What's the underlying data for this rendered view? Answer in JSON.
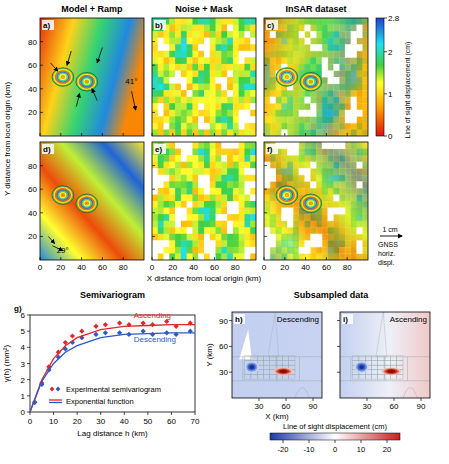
{
  "chart_data": [
    {
      "type": "map",
      "titles": [
        "Model + Ramp",
        "Noise + Mask",
        "InSAR dataset"
      ],
      "panel_labels": [
        "a)",
        "b)",
        "c)",
        "d)",
        "e)",
        "f)"
      ],
      "xlabel": "X distance from local origin (km)",
      "ylabel": "Y distance from local origin (km)",
      "xlim": [
        0,
        100
      ],
      "ylim": [
        0,
        100
      ],
      "xticks": [
        0,
        20,
        40,
        60,
        80
      ],
      "yticks": [
        20,
        40,
        60,
        80
      ],
      "colorbar": {
        "label": "Line of sight displacement (cm)",
        "lim": [
          0,
          2.8
        ],
        "ticks": [
          0,
          1,
          2,
          2.8
        ]
      },
      "annotations": [
        "41°",
        "29°"
      ],
      "scale": {
        "label": "1 cm",
        "title": "GNSS horiz. displ."
      }
    },
    {
      "type": "scatter",
      "label": "g)",
      "title": "Semivariogram",
      "xlabel": "Lag distance h (km)",
      "ylabel": "γ(h) (mm²)",
      "xlim": [
        0,
        70
      ],
      "ylim": [
        0,
        6
      ],
      "xticks": [
        0,
        10,
        20,
        30,
        40,
        50,
        60,
        70
      ],
      "yticks": [
        0,
        1,
        2,
        3,
        4,
        5,
        6
      ],
      "legend": "lower right",
      "legend_labels": [
        "Experimental semivariogram",
        "Exponential function"
      ],
      "series": [
        {
          "name": "Ascending",
          "type": "scatter",
          "marker": "diamond",
          "color": "#e3262b",
          "x": [
            2,
            5,
            8,
            12,
            15,
            18,
            22,
            28,
            32,
            38,
            42,
            48,
            52,
            58,
            62,
            68
          ],
          "values": [
            0.6,
            1.8,
            2.8,
            3.7,
            4.3,
            4.7,
            5.0,
            5.3,
            5.4,
            5.5,
            5.4,
            5.5,
            5.4,
            5.6,
            5.3,
            5.5
          ]
        },
        {
          "name": "Descending",
          "type": "scatter",
          "marker": "diamond",
          "color": "#2b5bc8",
          "x": [
            2,
            5,
            8,
            12,
            15,
            18,
            22,
            28,
            32,
            38,
            42,
            48,
            52,
            58,
            62,
            68
          ],
          "values": [
            0.6,
            1.7,
            2.6,
            3.4,
            3.9,
            4.3,
            4.6,
            4.8,
            4.9,
            4.9,
            4.8,
            5.0,
            4.8,
            4.9,
            4.8,
            5.0
          ]
        },
        {
          "name": "Ascending",
          "type": "line",
          "line_style": "solid",
          "color": "#e3262b",
          "x": [
            0,
            5,
            10,
            15,
            20,
            30,
            40,
            50,
            60,
            70
          ],
          "values": [
            0,
            2.0,
            3.3,
            4.1,
            4.6,
            5.1,
            5.3,
            5.35,
            5.4,
            5.4
          ]
        },
        {
          "name": "Descending",
          "type": "line",
          "line_style": "solid",
          "color": "#2b5bc8",
          "x": [
            0,
            5,
            10,
            15,
            20,
            30,
            40,
            50,
            60,
            70
          ],
          "values": [
            0,
            1.9,
            3.0,
            3.7,
            4.1,
            4.6,
            4.8,
            4.85,
            4.9,
            4.9
          ]
        }
      ]
    },
    {
      "type": "map",
      "title": "Subsampled data",
      "panel_labels": [
        "h)",
        "i)"
      ],
      "panel_titles": [
        "Descending",
        "Ascending"
      ],
      "xlabel": "X (km)",
      "ylabel": "Y (km)",
      "xlim": [
        0,
        100
      ],
      "ylim": [
        0,
        100
      ],
      "xticks": [
        30,
        60,
        90
      ],
      "yticks": [
        30,
        60,
        90
      ],
      "colorbar": {
        "label": "Line of sight displacement (cm)",
        "lim": [
          -25,
          25
        ],
        "ticks": [
          -20,
          -10,
          0,
          10,
          20
        ]
      }
    }
  ]
}
